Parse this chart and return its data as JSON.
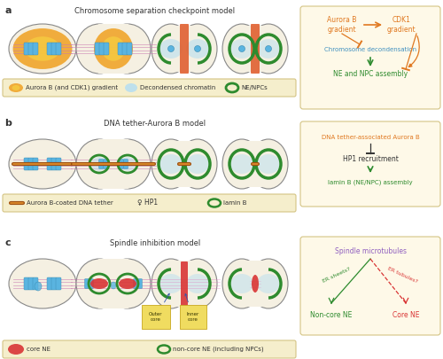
{
  "bg_color": "#ffffff",
  "title_a": "Chromosome separation checkpoint model",
  "title_b": "DNA tether-Aurora B model",
  "title_c": "Spindle inhibition model",
  "label_a": "a",
  "label_b": "b",
  "label_c": "c",
  "orange_dark": "#e07820",
  "orange_mid": "#f0a020",
  "orange_light": "#f5c840",
  "green_ne": "#2e8b2e",
  "blue_chrom": "#5ab4e0",
  "blue_light": "#b8dff0",
  "red_core": "#d93535",
  "pink_spindle": "#c878b0",
  "dark_gray": "#333333",
  "cell_fill": "#f5f0e2",
  "cell_edge": "#888888",
  "legend_bg": "#f5eecc",
  "legend_border": "#d4c484",
  "box_bg": "#fef9e8",
  "box_border": "#d4c484",
  "tether_dark": "#a05010",
  "tether_light": "#e09030",
  "text_orange": "#e07820",
  "text_green": "#2e8b2e",
  "text_blue": "#4090c0",
  "text_red": "#d93535",
  "text_purple": "#9060c0"
}
